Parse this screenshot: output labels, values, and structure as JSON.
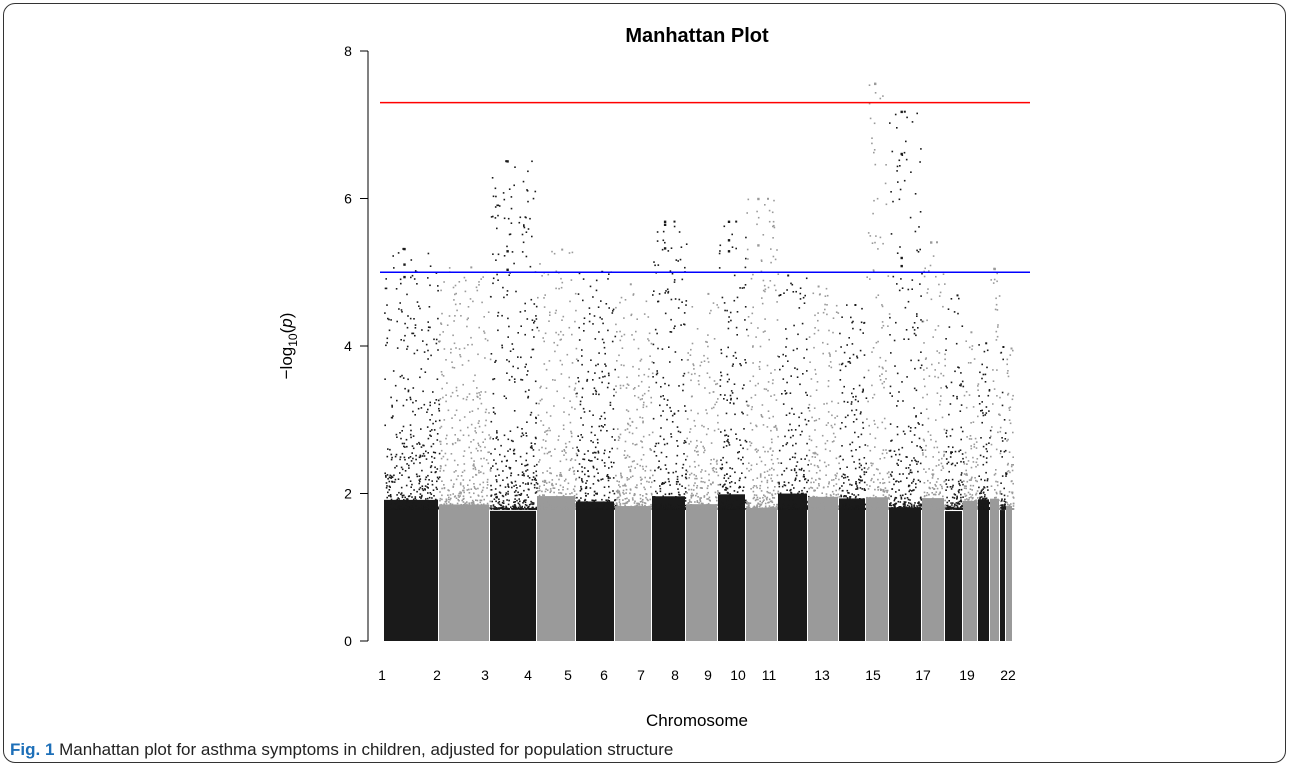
{
  "caption": {
    "label": "Fig. 1",
    "text": "Manhattan plot for asthma symptoms in children, adjusted for population structure"
  },
  "colors": {
    "odd_chromosome": "#1a1a1a",
    "even_chromosome": "#9a9a9a",
    "genome_wide_line": "#ff0000",
    "suggestive_line": "#0000ff"
  },
  "chart_data": {
    "type": "scatter",
    "title": "Manhattan Plot",
    "xlabel": "Chromosome",
    "ylabel": "-log10(p)",
    "ylim": [
      0,
      8
    ],
    "yticks": [
      0,
      2,
      4,
      6,
      8
    ],
    "xtick_labels": [
      "1",
      "2",
      "3",
      "4",
      "5",
      "6",
      "7",
      "8",
      "9",
      "10",
      "11",
      "13",
      "15",
      "17",
      "19",
      "22"
    ],
    "grid": false,
    "thresholds": [
      {
        "value": 7.3,
        "color": "red"
      },
      {
        "value": 5.0,
        "color": "blue"
      }
    ],
    "chromosomes": [
      {
        "chr": 1,
        "peak": 5.33
      },
      {
        "chr": 2,
        "peak": 5.08
      },
      {
        "chr": 3,
        "peak": 6.52
      },
      {
        "chr": 4,
        "peak": 5.32
      },
      {
        "chr": 5,
        "peak": 5.02
      },
      {
        "chr": 6,
        "peak": 4.85
      },
      {
        "chr": 7,
        "peak": 5.7
      },
      {
        "chr": 8,
        "peak": 4.72
      },
      {
        "chr": 9,
        "peak": 5.7
      },
      {
        "chr": 10,
        "peak": 6.01
      },
      {
        "chr": 11,
        "peak": 4.97
      },
      {
        "chr": 12,
        "peak": 4.82
      },
      {
        "chr": 13,
        "peak": 4.57
      },
      {
        "chr": 14,
        "peak": 7.57
      },
      {
        "chr": 15,
        "peak": 7.19
      },
      {
        "chr": 16,
        "peak": 5.42
      },
      {
        "chr": 17,
        "peak": 4.7
      },
      {
        "chr": 18,
        "peak": 4.2
      },
      {
        "chr": 19,
        "peak": 4.05
      },
      {
        "chr": 20,
        "peak": 5.06
      },
      {
        "chr": 21,
        "peak": 4.0
      },
      {
        "chr": 22,
        "peak": 3.98
      }
    ],
    "highlighted_points": [
      {
        "chr": 1,
        "y": 5.33
      },
      {
        "chr": 1,
        "y": 5.12
      },
      {
        "chr": 1,
        "y": 4.95
      },
      {
        "chr": 3,
        "y": 6.52
      },
      {
        "chr": 3,
        "y": 5.3
      },
      {
        "chr": 3,
        "y": 5.05
      },
      {
        "chr": 7,
        "y": 5.7
      },
      {
        "chr": 7,
        "y": 5.66
      },
      {
        "chr": 7,
        "y": 5.34
      },
      {
        "chr": 9,
        "y": 5.7
      },
      {
        "chr": 9,
        "y": 5.45
      },
      {
        "chr": 9,
        "y": 5.3
      },
      {
        "chr": 10,
        "y": 6.01
      },
      {
        "chr": 10,
        "y": 5.38
      },
      {
        "chr": 14,
        "y": 7.57
      },
      {
        "chr": 15,
        "y": 7.19
      },
      {
        "chr": 15,
        "y": 6.62
      },
      {
        "chr": 15,
        "y": 5.21
      },
      {
        "chr": 15,
        "y": 5.1
      },
      {
        "chr": 16,
        "y": 5.42
      },
      {
        "chr": 20,
        "y": 5.06
      }
    ]
  }
}
